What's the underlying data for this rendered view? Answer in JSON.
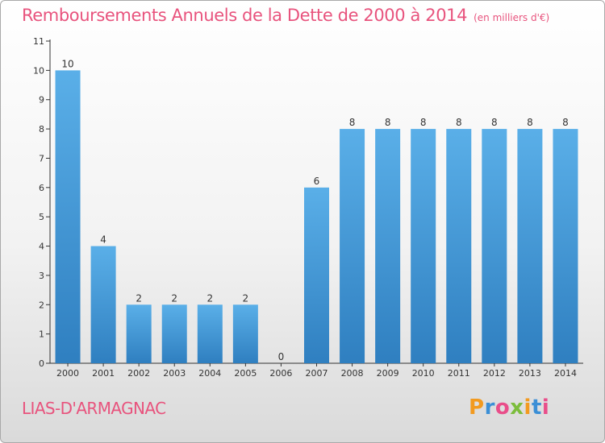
{
  "title": "Remboursements Annuels de la Dette de 2000 à 2014",
  "unit_note": "(en milliers d'€)",
  "town": "LIAS-D'ARMAGNAC",
  "brand": "Proxiti",
  "colors": {
    "title": "#e8537d",
    "bar_light": "#5aafe8",
    "bar_dark": "#2f7fc0",
    "axis": "#333333",
    "brand_letters": [
      "#f29a1f",
      "#3b8fd6",
      "#e94e8a",
      "#7cbd3c",
      "#f29a1f",
      "#3b8fd6",
      "#e94e8a"
    ]
  },
  "chart_data": {
    "type": "bar",
    "categories": [
      "2000",
      "2001",
      "2002",
      "2003",
      "2004",
      "2005",
      "2006",
      "2007",
      "2008",
      "2009",
      "2010",
      "2011",
      "2012",
      "2013",
      "2014"
    ],
    "values": [
      10,
      4,
      2,
      2,
      2,
      2,
      0,
      6,
      8,
      8,
      8,
      8,
      8,
      8,
      8
    ],
    "data_labels": [
      "10",
      "4",
      "2",
      "2",
      "2",
      "2",
      "0",
      "6",
      "8",
      "8",
      "8",
      "8",
      "8",
      "8",
      "8"
    ],
    "y_ticks": [
      "0",
      "1",
      "2",
      "3",
      "4",
      "5",
      "6",
      "7",
      "8",
      "9",
      "10",
      "11"
    ],
    "ylim": [
      0,
      11
    ],
    "grid": false,
    "xlabel": "",
    "ylabel": ""
  }
}
